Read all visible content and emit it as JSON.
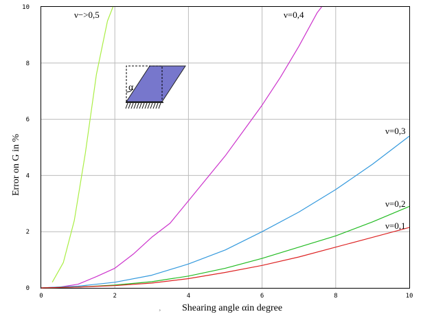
{
  "chart_data": {
    "type": "line",
    "xlabel": "Shearing angle αin degree",
    "ylabel": "Error on G in %",
    "xlim": [
      0,
      10
    ],
    "ylim": [
      0,
      10
    ],
    "xticks": [
      "0",
      "2",
      "4",
      "6",
      "8",
      "10"
    ],
    "yticks": [
      "0",
      "2",
      "4",
      "6",
      "8",
      "10"
    ],
    "grid": true,
    "series": [
      {
        "name": "ν→ 0,5",
        "label": "ν−>0,5",
        "color": "#aaee44",
        "x": [
          0.3,
          0.6,
          0.9,
          1.2,
          1.5,
          1.8,
          1.95
        ],
        "y": [
          0.2,
          0.9,
          2.4,
          4.8,
          7.6,
          9.5,
          10.0
        ]
      },
      {
        "name": "ν=0,4",
        "label": "ν=0,4",
        "color": "#cc33cc",
        "x": [
          0,
          0.5,
          1,
          1.5,
          2,
          2.5,
          3,
          3.5,
          4,
          4.5,
          5,
          5.5,
          6,
          6.5,
          7,
          7.5,
          7.62
        ],
        "y": [
          0,
          0.03,
          0.13,
          0.4,
          0.7,
          1.2,
          1.8,
          2.3,
          3.1,
          3.9,
          4.7,
          5.6,
          6.5,
          7.5,
          8.6,
          9.8,
          10.0
        ]
      },
      {
        "name": "ν=0,3",
        "label": "ν=0,3",
        "color": "#3399dd",
        "x": [
          0,
          1,
          2,
          3,
          4,
          5,
          6,
          7,
          8,
          9,
          10
        ],
        "y": [
          0,
          0.06,
          0.2,
          0.45,
          0.85,
          1.35,
          2.0,
          2.7,
          3.5,
          4.4,
          5.4
        ]
      },
      {
        "name": "ν=0,2",
        "label": "ν=0,2",
        "color": "#22bb22",
        "x": [
          0,
          1,
          2,
          3,
          4,
          5,
          6,
          7,
          8,
          9,
          10
        ],
        "y": [
          0,
          0.03,
          0.1,
          0.22,
          0.42,
          0.7,
          1.05,
          1.45,
          1.85,
          2.35,
          2.9
        ]
      },
      {
        "name": "ν=0,1",
        "label": "ν=0,1",
        "color": "#dd2222",
        "x": [
          0,
          1,
          2,
          3,
          4,
          5,
          6,
          7,
          8,
          9,
          10
        ],
        "y": [
          0,
          0.03,
          0.08,
          0.17,
          0.33,
          0.55,
          0.8,
          1.1,
          1.45,
          1.8,
          2.15
        ]
      }
    ],
    "inset": {
      "symbol": "α",
      "fill_color": "#7777cc"
    }
  },
  "stray_mark": "¸"
}
